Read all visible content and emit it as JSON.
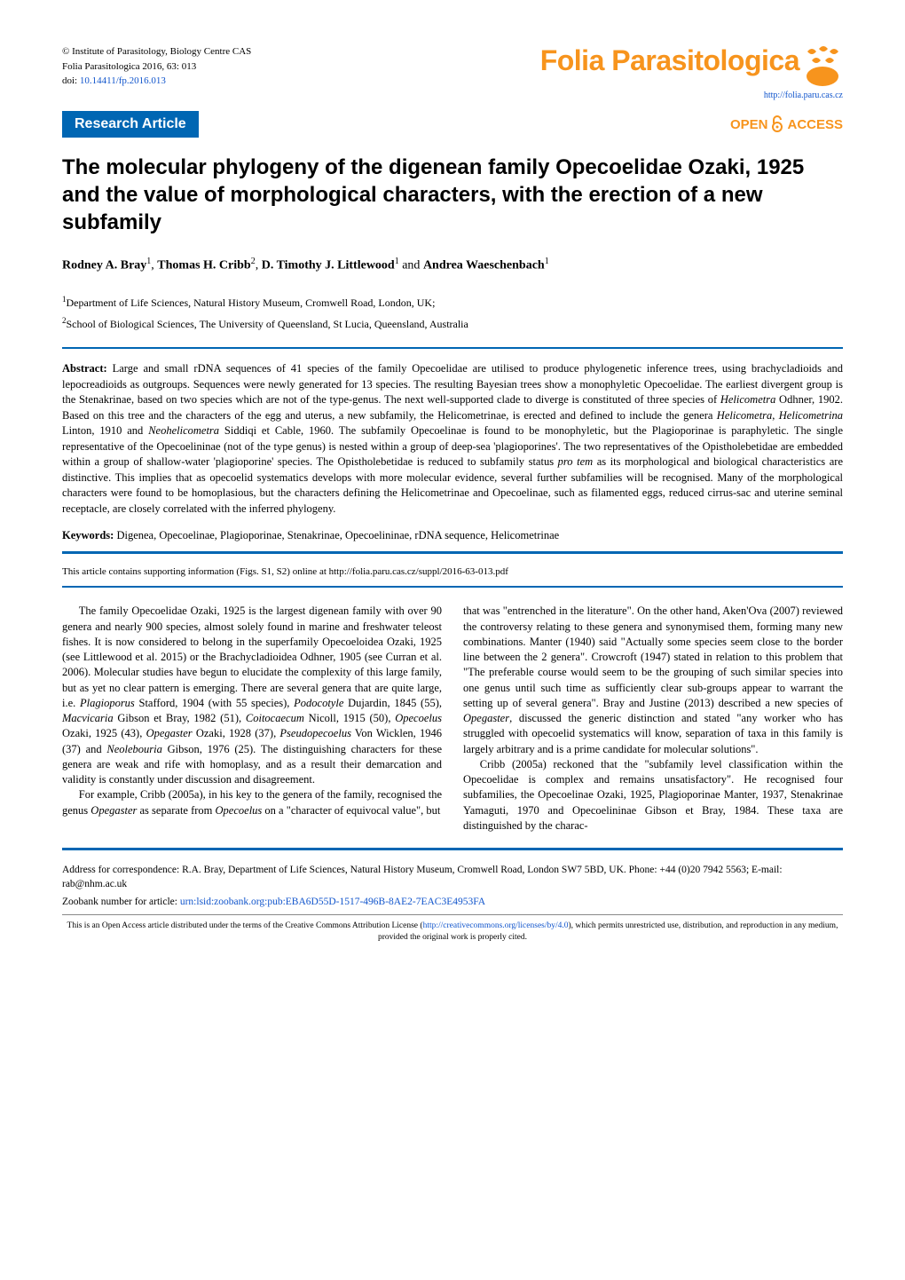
{
  "journal": {
    "copyright": "© Institute of Parasitology, Biology Centre CAS",
    "citation": "Folia Parasitologica 2016, 63: 013",
    "doi_label": "doi: ",
    "doi": "10.14411/fp.2016.013",
    "name": "Folia Parasitologica",
    "url": "http://folia.paru.cas.cz",
    "logo_color": "#f7941d",
    "logo_icon_color": "#f7941d"
  },
  "article_type": {
    "label": "Research Article",
    "bg_color": "#0066b3",
    "text_color": "#ffffff"
  },
  "open_access": {
    "text_open": "OPEN",
    "text_access": "ACCESS",
    "color": "#f7941d"
  },
  "title": "The molecular phylogeny of the digenean family Opecoelidae Ozaki, 1925 and the value of morphological characters, with the erection of a new subfamily",
  "authors_html": "<b>Rodney A. Bray</b><sup>1</sup>, <b>Thomas H. Cribb</b><sup>2</sup>, <b>D. Timothy J. Littlewood</b><sup>1</sup> and <b>Andrea Waeschenbach</b><sup>1</sup>",
  "affiliations": [
    "Department of Life Sciences, Natural History Museum, Cromwell Road, London, UK;",
    "School of Biological Sciences, The University of Queensland, St Lucia, Queensland, Australia"
  ],
  "abstract_label": "Abstract:",
  "abstract_text": " Large and small rDNA sequences of 41 species of the family Opecoelidae are utilised to produce phylogenetic inference trees, using brachycladioids and lepocreadioids as outgroups. Sequences were newly generated for 13 species. The resulting Bayesian trees show a monophyletic Opecoelidae. The earliest divergent group is the Stenakrinae, based on two species which are not of the type-genus. The next well-supported clade to diverge is constituted of three species of <i>Helicometra</i> Odhner, 1902. Based on this tree and the characters of the egg and uterus, a new subfamily, the Helicometrinae, is erected and defined to include the genera <i>Helicometra</i>, <i>Helicometrina</i> Linton, 1910 and <i>Neohelicometra</i> Siddiqi et Cable, 1960. The subfamily Opecoelinae is found to be monophyletic, but the Plagioporinae is paraphyletic. The single representative of the Opecoelininae (not of the type genus) is nested within a group of deep-sea 'plagioporines'. The two representatives of the Opistholebetidae are embedded within a group of shallow-water 'plagioporine' species. The Opistholebetidae is reduced to subfamily status <i>pro tem</i> as its morphological and biological characteristics are distinctive. This implies that as opecoelid systematics develops with more molecular evidence, several further subfamilies will be recognised. Many of the morphological characters were found to be homoplasious, but the characters defining the Helicometrinae and Opecoelinae, such as filamented eggs, reduced cirrus-sac and uterine seminal receptacle, are closely correlated with the inferred phylogeny.",
  "keywords_label": "Keywords:",
  "keywords_text": " Digenea, Opecoelinae, Plagioporinae, Stenakrinae, Opecoelininae, rDNA sequence, Helicometrinae",
  "sup_info": "This article contains supporting information (Figs. S1, S2) online at http://folia.paru.cas.cz/suppl/2016-63-013.pdf",
  "body": {
    "col1_p1": "The family Opecoelidae Ozaki, 1925 is the largest digenean family with over 90 genera and nearly 900 species, almost solely found in marine and freshwater teleost fishes. It is now considered to belong in the superfamily Opecoeloidea Ozaki, 1925 (see Littlewood et al. 2015) or the Brachycladioidea Odhner, 1905 (see Curran et al. 2006). Molecular studies have begun to elucidate the complexity of this large family, but as yet no clear pattern is emerging. There are several genera that are quite large, i.e. <i>Plagioporus</i> Stafford, 1904 (with 55 species), <i>Podocotyle</i> Dujardin, 1845 (55), <i>Macvicaria</i> Gibson et Bray, 1982 (51), <i>Coitocaecum</i> Nicoll, 1915 (50), <i>Opecoelus</i> Ozaki, 1925 (43), <i>Opegaster</i> Ozaki, 1928 (37), <i>Pseudopecoelus</i> Von Wicklen, 1946 (37) and <i>Neolebouria</i> Gibson, 1976 (25). The distinguishing characters for these genera are weak and rife with homoplasy, and as a result their demarcation and validity is constantly under discussion and disagreement.",
    "col1_p2": "For example, Cribb (2005a), in his key to the genera of the family, recognised the genus <i>Opegaster</i> as separate from <i>Opecoelus</i> on a \"character of equivocal value\", but",
    "col2_p1": "that was \"entrenched in the literature\". On the other hand, Aken'Ova (2007) reviewed the controversy relating to these genera and synonymised them, forming many new combinations. Manter (1940) said \"Actually some species seem close to the border line between the 2 genera\". Crowcroft (1947) stated in relation to this problem that \"The preferable course would seem to be the grouping of such similar species into one genus until such time as sufficiently clear sub-groups appear to warrant the setting up of several genera\". Bray and Justine (2013) described a new species of <i>Opegaster</i>, discussed the generic distinction and stated \"any worker who has struggled with opecoelid systematics will know, separation of taxa in this family is largely arbitrary and is a prime candidate for molecular solutions\".",
    "col2_p2": "Cribb (2005a) reckoned that the \"subfamily level classification within the Opecoelidae is complex and remains unsatisfactory\". He recognised four subfamilies, the Opecoelinae Ozaki, 1925, Plagioporinae Manter, 1937, Stenakrinae Yamaguti, 1970 and Opecoelininae Gibson et Bray, 1984. These taxa are distinguished by the charac-"
  },
  "correspondence": "Address for correspondence: R.A. Bray, Department of Life Sciences, Natural History Museum, Cromwell Road, London SW7 5BD, UK. Phone: +44 (0)20 7942 5563; E-mail: rab@nhm.ac.uk",
  "zoobank_label": "Zoobank number for article: ",
  "zoobank_urn": "urn:lsid:zoobank.org:pub:EBA6D55D-1517-496B-8AE2-7EAC3E4953FA",
  "license_text_1": "This is an Open Access article distributed under the terms of the Creative Commons Attribution License (",
  "license_url": "http://creativecommons.org/licenses/by/4.0",
  "license_text_2": "), which permits unrestricted use, distribution, and reproduction in any medium, provided the original work is properly cited.",
  "hr_color": "#0066b3"
}
